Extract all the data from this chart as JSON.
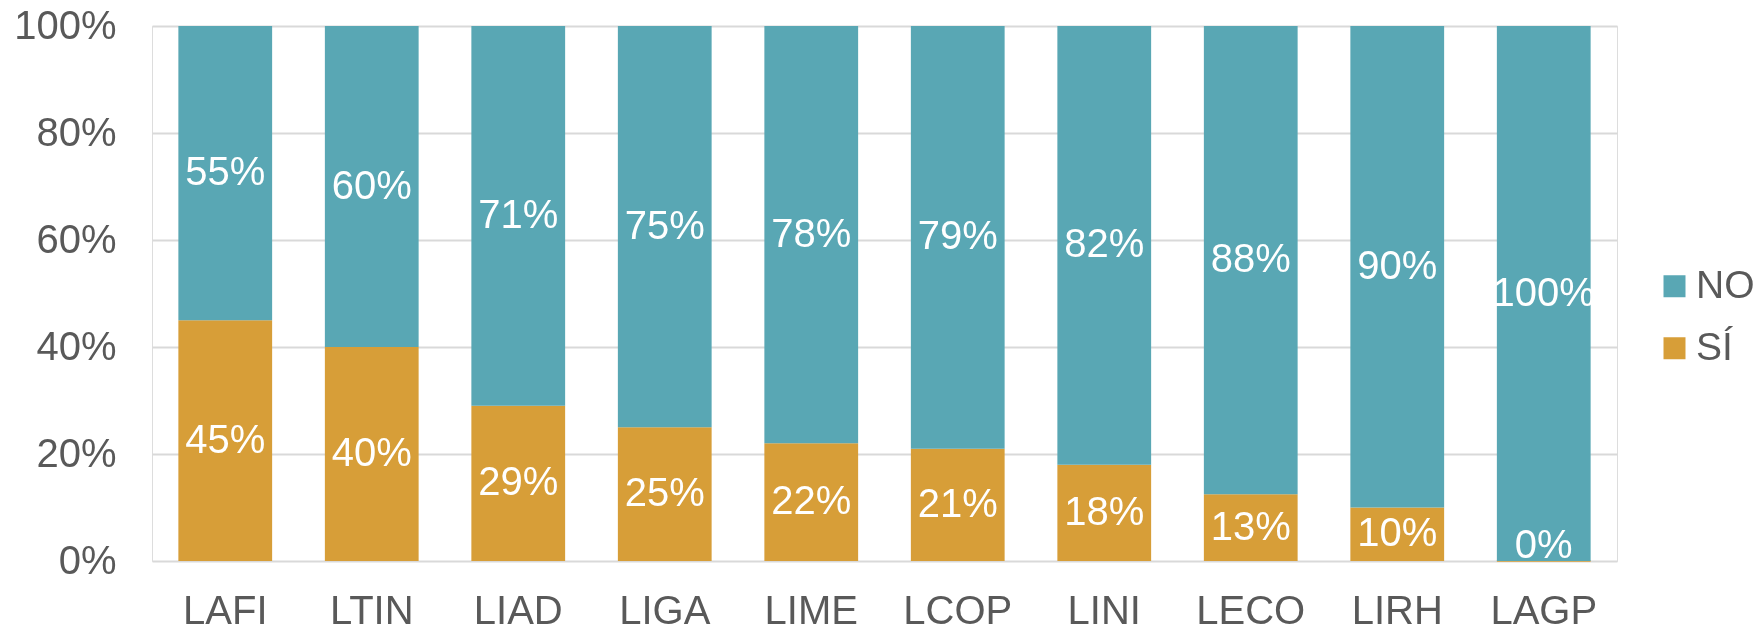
{
  "chart_data": {
    "type": "bar",
    "stacked": true,
    "categories": [
      "LAFI",
      "LTIN",
      "LIAD",
      "LIGA",
      "LIME",
      "LCOP",
      "LINI",
      "LECO",
      "LIRH",
      "LAGP"
    ],
    "series": [
      {
        "name": "SÍ",
        "color": "#d79e38",
        "values": [
          45,
          40,
          29,
          25,
          22,
          21,
          18,
          12.5,
          10,
          0
        ],
        "value_labels": [
          "45%",
          "40%",
          "29%",
          "25%",
          "22%",
          "21%",
          "18%",
          "13%",
          "10%",
          "0%"
        ]
      },
      {
        "name": "NO",
        "color": "#59a7b4",
        "values": [
          55,
          60,
          71,
          75,
          78,
          79,
          82,
          87.5,
          90,
          100
        ],
        "value_labels": [
          "55%",
          "60%",
          "71%",
          "75%",
          "78%",
          "79%",
          "82%",
          "88%",
          "90%",
          "100%"
        ]
      }
    ],
    "ylim": [
      0,
      100
    ],
    "yticks": [
      {
        "value": 0,
        "label": "0%"
      },
      {
        "value": 20,
        "label": "20%"
      },
      {
        "value": 40,
        "label": "40%"
      },
      {
        "value": 60,
        "label": "60%"
      },
      {
        "value": 80,
        "label": "80%"
      },
      {
        "value": 100,
        "label": "100%"
      }
    ],
    "grid": "y",
    "legend": "right"
  }
}
